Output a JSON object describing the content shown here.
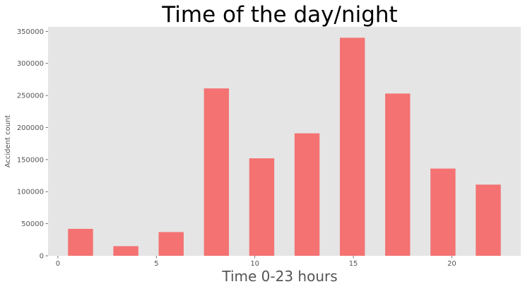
{
  "chart_data": {
    "type": "bar",
    "title": "Time of the day/night",
    "xlabel": "Time 0-23 hours",
    "ylabel": "Accident count",
    "x": [
      1.15,
      3.45,
      5.75,
      8.05,
      10.35,
      12.65,
      14.95,
      17.25,
      19.55,
      21.85
    ],
    "values": [
      42000,
      15000,
      37000,
      261000,
      152000,
      191000,
      340000,
      253000,
      136000,
      111000
    ],
    "bar_width": 1.27,
    "xlim": [
      -0.5,
      23.5
    ],
    "ylim": [
      0,
      357000
    ],
    "x_ticks": [
      0,
      5,
      10,
      15,
      20
    ],
    "x_tick_labels": [
      "0",
      "5",
      "10",
      "15",
      "20"
    ],
    "y_ticks": [
      0,
      50000,
      100000,
      150000,
      200000,
      250000,
      300000,
      350000
    ],
    "y_tick_labels": [
      "0",
      "50000",
      "100000",
      "150000",
      "200000",
      "250000",
      "300000",
      "350000"
    ],
    "grid": false,
    "colors": {
      "bar": "#f47272",
      "plot_background": "#e5e5e5"
    }
  }
}
